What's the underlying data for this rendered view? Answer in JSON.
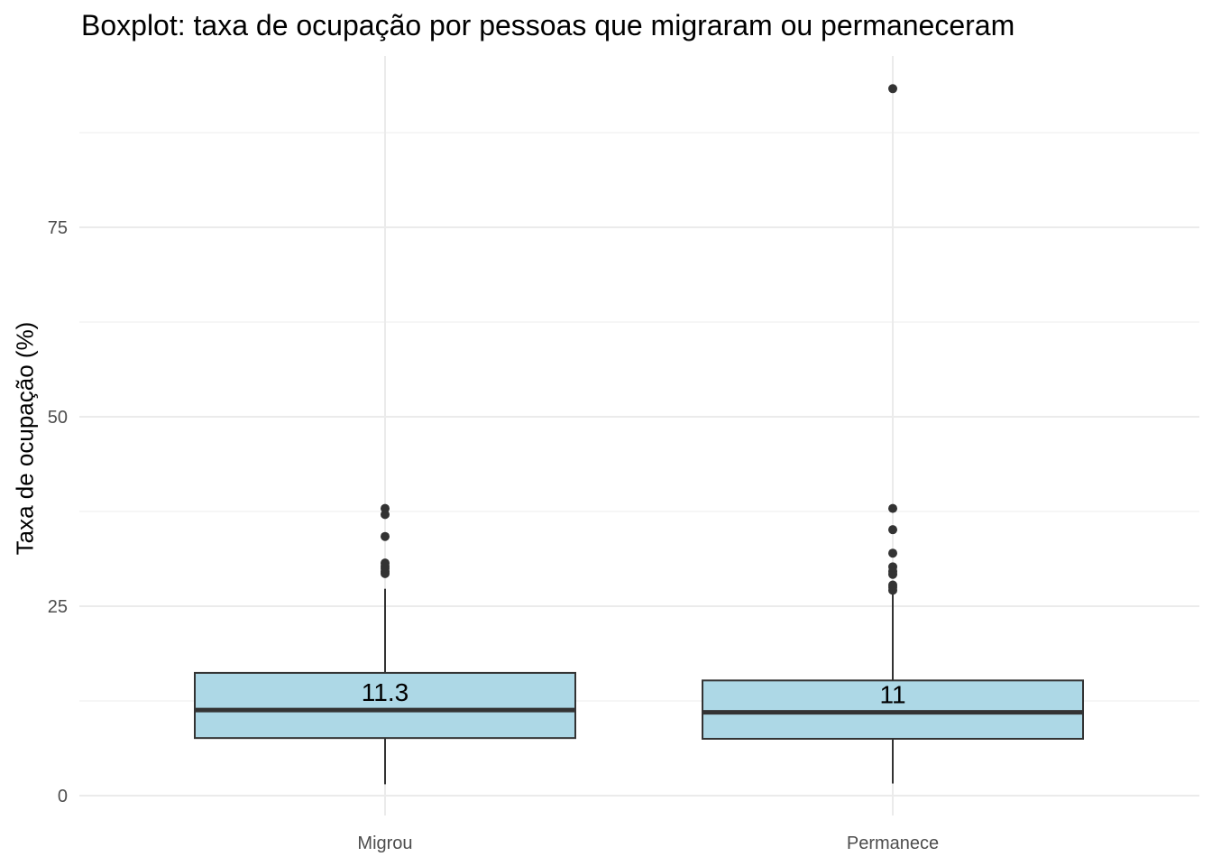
{
  "chart_data": {
    "type": "boxplot",
    "title": "Boxplot: taxa de ocupação por pessoas que migraram ou permaneceram",
    "xlabel": "",
    "ylabel": "Taxa de ocupação (%)",
    "ylim": [
      -2,
      99
    ],
    "y_ticks": [
      0,
      25,
      50,
      75
    ],
    "y_tick_labels": [
      "0",
      "25",
      "50",
      "75"
    ],
    "grid": true,
    "fill_color": "#add8e6",
    "line_color": "#333333",
    "categories": [
      "Migrou",
      "Permanece"
    ],
    "boxes": [
      {
        "category": "Migrou",
        "min": 1.5,
        "q1": 7.6,
        "median": 11.3,
        "q3": 16.2,
        "max": 27.3,
        "median_label": "11.3",
        "outliers": [
          29.3,
          29.6,
          30.0,
          30.3,
          30.7,
          34.2,
          37.1,
          37.9
        ]
      },
      {
        "category": "Permanece",
        "min": 1.6,
        "q1": 7.5,
        "median": 11.0,
        "q3": 15.2,
        "max": 26.8,
        "median_label": "11",
        "outliers": [
          27.1,
          27.5,
          27.8,
          29.2,
          29.6,
          30.2,
          32.0,
          35.1,
          37.9,
          93.3
        ]
      }
    ]
  }
}
